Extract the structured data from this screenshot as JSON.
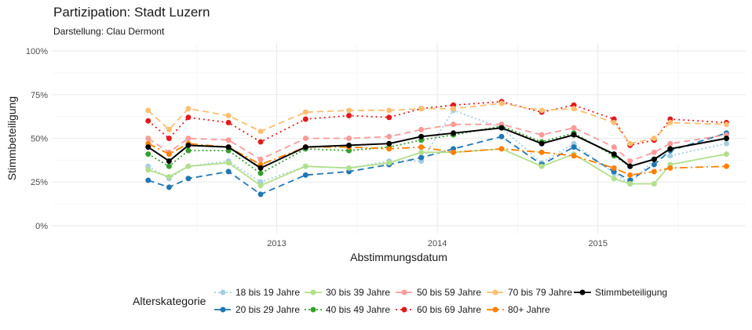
{
  "title": "Partizipation: Stadt Luzern",
  "subtitle": "Darstellung: Clau Dermont",
  "chart_data": {
    "type": "line",
    "xlabel": "Abstimmungsdatum",
    "ylabel": "Stimmbeteiligung",
    "x_ticks": [
      {
        "label": "2013",
        "value": 2013.0
      },
      {
        "label": "2014",
        "value": 2014.0
      },
      {
        "label": "2015",
        "value": 2015.0
      }
    ],
    "y_ticks": [
      {
        "label": "0%",
        "value": 0
      },
      {
        "label": "25%",
        "value": 25
      },
      {
        "label": "50%",
        "value": 50
      },
      {
        "label": "75%",
        "value": 75
      },
      {
        "label": "100%",
        "value": 100
      }
    ],
    "xlim": [
      2011.6,
      2015.92
    ],
    "ylim": [
      -4.5,
      104.5
    ],
    "grid": true,
    "legend_title": "Alterskategorie",
    "legend_position": "bottom",
    "x": [
      2012.2,
      2012.33,
      2012.45,
      2012.7,
      2012.9,
      2013.18,
      2013.45,
      2013.7,
      2013.9,
      2014.1,
      2014.4,
      2014.65,
      2014.85,
      2015.1,
      2015.2,
      2015.35,
      2015.45,
      2015.8
    ],
    "series": [
      {
        "name": "18 bis 19 Jahre",
        "color": "#a6cee3",
        "dash": "2,3",
        "values": [
          34,
          27,
          34,
          37,
          25,
          34,
          33,
          37,
          37,
          66,
          56,
          36,
          47,
          30,
          24,
          38,
          40,
          47
        ]
      },
      {
        "name": "20 bis 29 Jahre",
        "color": "#1f78b4",
        "dash": "8,5",
        "values": [
          26,
          22,
          27,
          31,
          18,
          29,
          31,
          35,
          39,
          44,
          51,
          35,
          45,
          31,
          26,
          35,
          43,
          53
        ]
      },
      {
        "name": "30 bis 39 Jahre",
        "color": "#b2df8a",
        "dash": "",
        "values": [
          32,
          28,
          34,
          36,
          23,
          34,
          33,
          36,
          42,
          42,
          44,
          34,
          41,
          27,
          24,
          24,
          35,
          41
        ]
      },
      {
        "name": "40 bis 49 Jahre",
        "color": "#33a02c",
        "dash": "2,3",
        "values": [
          41,
          34,
          43,
          43,
          30,
          44,
          43,
          45,
          49,
          52,
          57,
          48,
          53,
          40,
          34,
          38,
          44,
          50
        ]
      },
      {
        "name": "50 bis 59 Jahre",
        "color": "#fb9a99",
        "dash": "8,5",
        "values": [
          50,
          42,
          50,
          49,
          38,
          50,
          50,
          51,
          55,
          58,
          58,
          52,
          56,
          45,
          37,
          42,
          47,
          52
        ]
      },
      {
        "name": "60 bis 69 Jahre",
        "color": "#e31a1c",
        "dash": "2,4",
        "values": [
          60,
          50,
          62,
          59,
          48,
          61,
          63,
          62,
          67,
          69,
          71,
          65,
          69,
          61,
          46,
          49,
          61,
          59
        ]
      },
      {
        "name": "70 bis 79 Jahre",
        "color": "#fdbf6f",
        "dash": "8,5",
        "values": [
          66,
          55,
          67,
          63,
          54,
          65,
          66,
          66,
          67,
          67,
          70,
          66,
          67,
          59,
          47,
          50,
          59,
          58
        ]
      },
      {
        "name": "80+ Jahre",
        "color": "#ff7f00",
        "dash": "10,4,2,4",
        "values": [
          47,
          41,
          47,
          45,
          35,
          45,
          45,
          44,
          45,
          42,
          44,
          42,
          40,
          33,
          29,
          31,
          33,
          34
        ]
      },
      {
        "name": "Stimmbeteiligung",
        "color": "#000000",
        "dash": "",
        "values": [
          45,
          37,
          46,
          45,
          33,
          45,
          46,
          47,
          51,
          53,
          56,
          47,
          52,
          41,
          34,
          38,
          44,
          50
        ]
      }
    ]
  }
}
